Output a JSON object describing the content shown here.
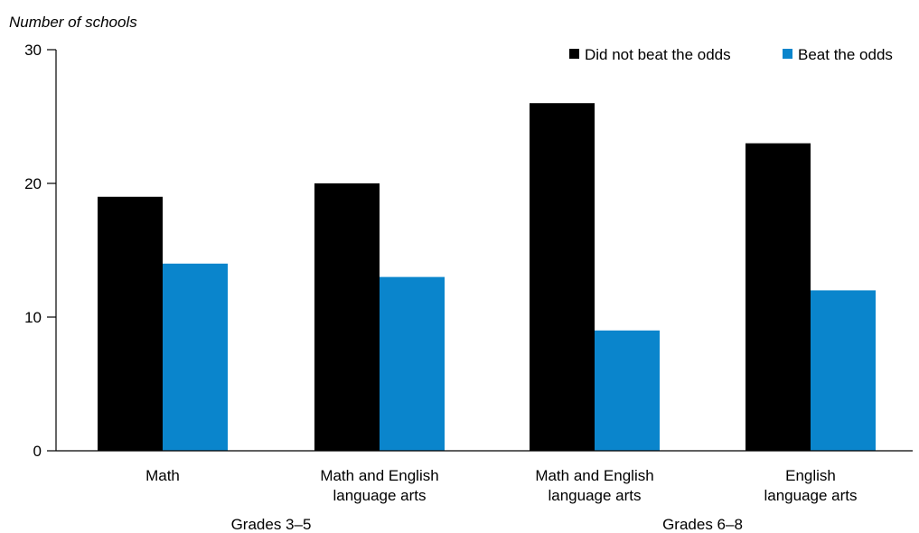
{
  "chart_data": {
    "type": "bar",
    "title": "",
    "xlabel": "",
    "ylabel": "Number of schools",
    "ylim": [
      0,
      30
    ],
    "yticks": [
      0,
      10,
      20,
      30
    ],
    "grid": false,
    "legend_position": "top-right",
    "categories": [
      [
        "Math"
      ],
      [
        "Math and English",
        "language arts"
      ],
      [
        "Math and English",
        "language arts"
      ],
      [
        "English",
        "language arts"
      ]
    ],
    "groups": [
      {
        "label": "Grades 3–5",
        "categories": [
          0,
          1
        ]
      },
      {
        "label": "Grades 6–8",
        "categories": [
          2,
          3
        ]
      }
    ],
    "series": [
      {
        "name": "Did not beat the odds",
        "color": "#000000",
        "values": [
          19,
          20,
          26,
          23
        ]
      },
      {
        "name": "Beat the odds",
        "color": "#0A85CC",
        "values": [
          14,
          13,
          9,
          12
        ]
      }
    ]
  }
}
